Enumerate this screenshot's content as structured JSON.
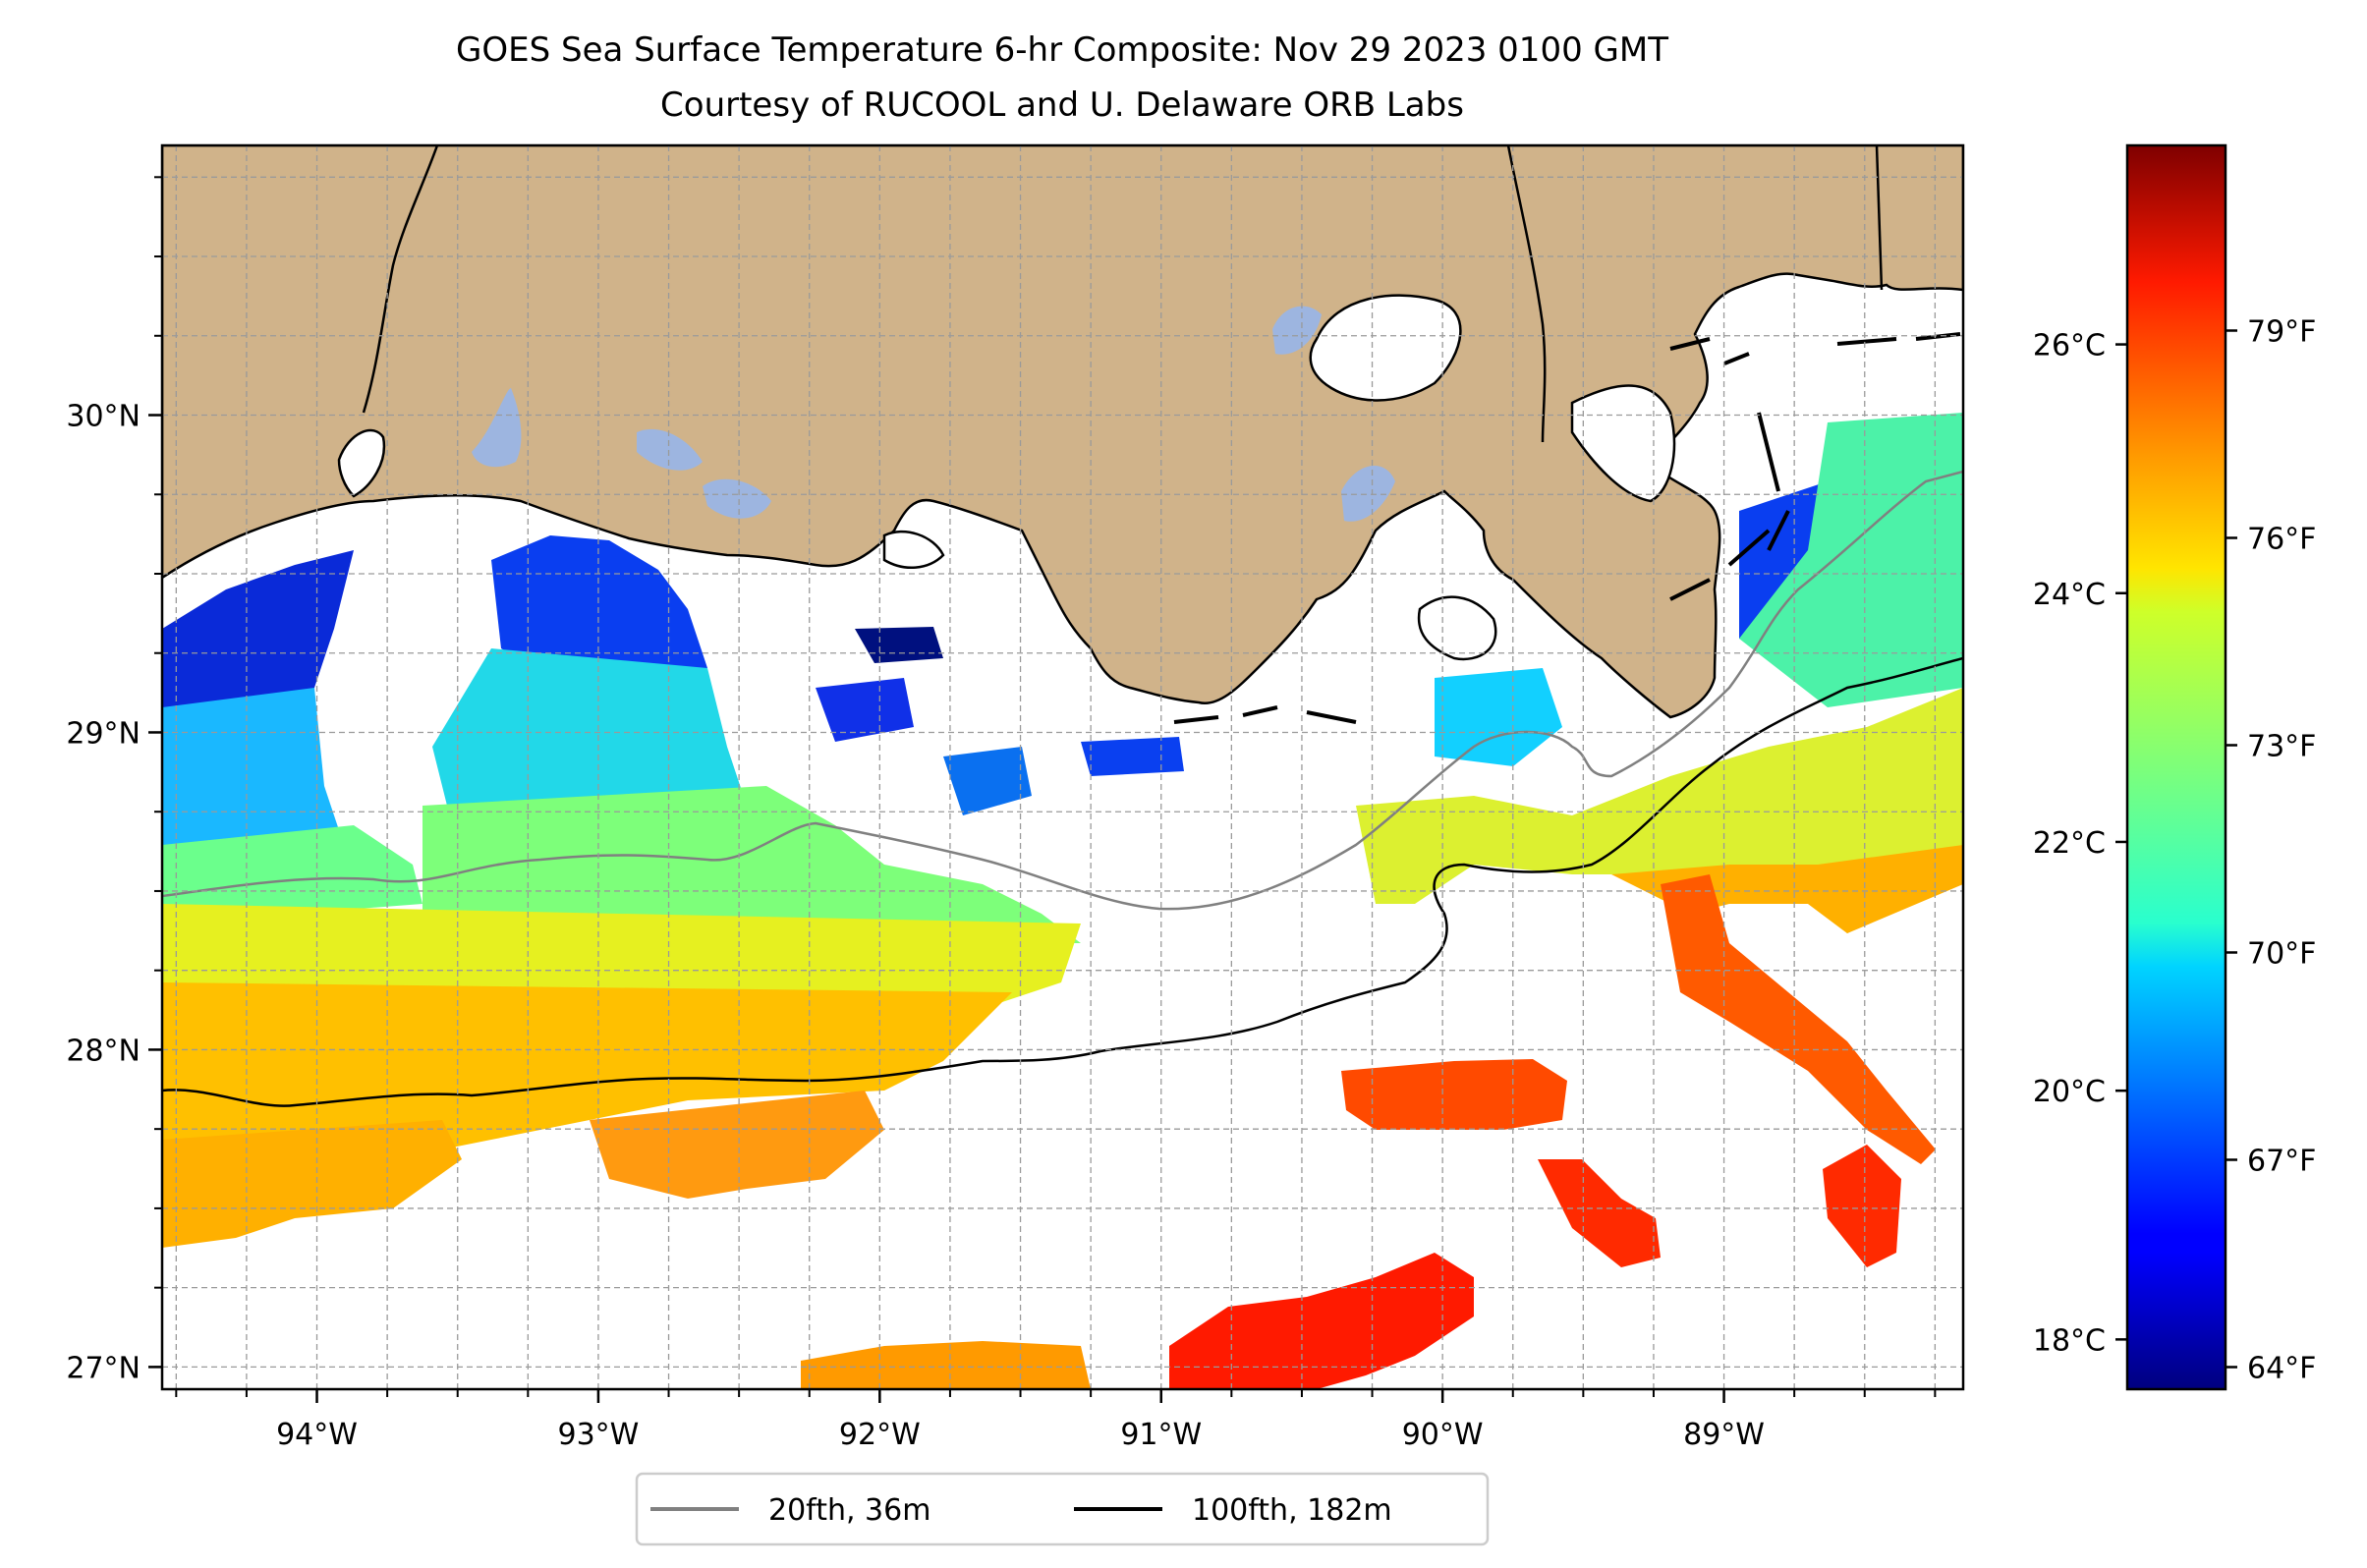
{
  "title": {
    "line1": "GOES Sea Surface Temperature 6-hr Composite: Nov 29 2023 0100 GMT",
    "line2": "Courtesy of RUCOOL and U. Delaware ORB Labs"
  },
  "map": {
    "lon_range": [
      -94.55,
      -88.15
    ],
    "lat_range": [
      26.93,
      30.85
    ],
    "lon_ticks": [
      {
        "value": -94,
        "label": "94°W"
      },
      {
        "value": -93,
        "label": "93°W"
      },
      {
        "value": -92,
        "label": "92°W"
      },
      {
        "value": -91,
        "label": "91°W"
      },
      {
        "value": -90,
        "label": "90°W"
      },
      {
        "value": -89,
        "label": "89°W"
      }
    ],
    "lat_ticks": [
      {
        "value": 30,
        "label": "30°N"
      },
      {
        "value": 29,
        "label": "29°N"
      },
      {
        "value": 28,
        "label": "28°N"
      },
      {
        "value": 27,
        "label": "27°N"
      }
    ],
    "land_color": "#d0b38a",
    "lake_color": "#9db5e0",
    "grid": true
  },
  "colorbar": {
    "colormap": "jet",
    "range_c": [
      17.6,
      27.6
    ],
    "celsius_ticks": [
      {
        "value": 18,
        "label": "18°C"
      },
      {
        "value": 20,
        "label": "20°C"
      },
      {
        "value": 22,
        "label": "22°C"
      },
      {
        "value": 24,
        "label": "24°C"
      },
      {
        "value": 26,
        "label": "26°C"
      }
    ],
    "fahrenheit_ticks": [
      {
        "value": 64,
        "label": "64°F"
      },
      {
        "value": 67,
        "label": "67°F"
      },
      {
        "value": 70,
        "label": "70°F"
      },
      {
        "value": 73,
        "label": "73°F"
      },
      {
        "value": 76,
        "label": "76°F"
      },
      {
        "value": 79,
        "label": "79°F"
      }
    ]
  },
  "legend": {
    "items": [
      {
        "label": "20fth, 36m",
        "color": "#808080"
      },
      {
        "label": "100fth, 182m",
        "color": "#000000"
      }
    ]
  }
}
